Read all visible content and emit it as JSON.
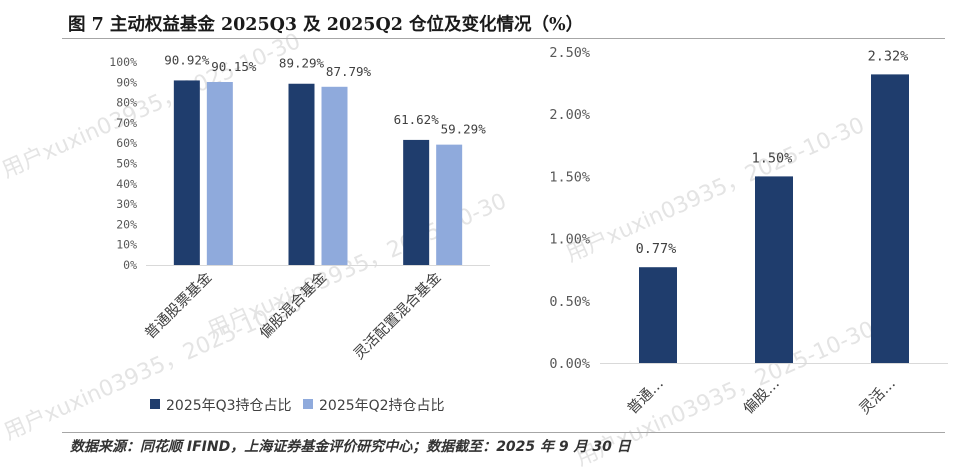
{
  "figure": {
    "title": "图 7 主动权益基金 2025Q3 及 2025Q2 仓位及变化情况（%）",
    "source": "数据来源：同花顺 IFIND，上海证券基金评价研究中心；数据截至：2025 年 9 月 30 日",
    "watermark": "用户xuxin03935，2025-10-30"
  },
  "chart_data": [
    {
      "type": "bar",
      "categories": [
        "普通股票基金",
        "偏股混合基金",
        "灵活配置混合基金"
      ],
      "series": [
        {
          "name": "2025年Q3持仓占比",
          "values": [
            90.92,
            89.29,
            61.62
          ],
          "labels": [
            "90.92%",
            "89.29%",
            "61.62%"
          ],
          "color": "#1F3D6D"
        },
        {
          "name": "2025年Q2持仓占比",
          "values": [
            90.15,
            87.79,
            59.29
          ],
          "labels": [
            "90.15%",
            "87.79%",
            "59.29%"
          ],
          "color": "#8FAADC"
        }
      ],
      "ylim": [
        0,
        100
      ],
      "yticks": [
        0,
        10,
        20,
        30,
        40,
        50,
        60,
        70,
        80,
        90,
        100
      ],
      "ytick_labels": [
        "0%",
        "10%",
        "20%",
        "30%",
        "40%",
        "50%",
        "60%",
        "70%",
        "80%",
        "90%",
        "100%"
      ],
      "grid": false,
      "legend": "bottom"
    },
    {
      "type": "bar",
      "categories": [
        "普通…",
        "偏股…",
        "灵活…"
      ],
      "values": [
        0.77,
        1.5,
        2.32
      ],
      "labels": [
        "0.77%",
        "1.50%",
        "2.32%"
      ],
      "color": "#1F3D6D",
      "ylim": [
        0,
        2.5
      ],
      "yticks": [
        0,
        0.5,
        1.0,
        1.5,
        2.0,
        2.5
      ],
      "ytick_labels": [
        "0.00%",
        "0.50%",
        "1.00%",
        "1.50%",
        "2.00%",
        "2.50%"
      ],
      "grid": false,
      "legend": "none"
    }
  ]
}
